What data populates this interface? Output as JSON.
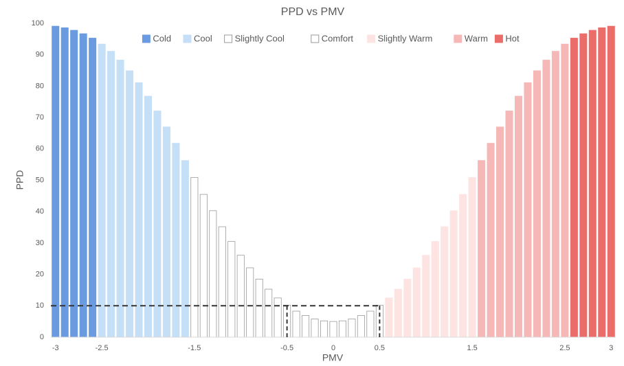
{
  "chart_data": {
    "type": "bar",
    "title": "PPD vs PMV",
    "xlabel": "PMV",
    "ylabel": "PPD",
    "categories": [
      "-3",
      null,
      null,
      null,
      null,
      "-2.5",
      null,
      null,
      null,
      null,
      null,
      null,
      null,
      null,
      null,
      "-1.5",
      null,
      null,
      null,
      null,
      null,
      null,
      null,
      null,
      null,
      "-0.5",
      null,
      null,
      null,
      null,
      "0",
      null,
      null,
      null,
      null,
      "0.5",
      null,
      null,
      null,
      null,
      null,
      null,
      null,
      null,
      null,
      "1.5",
      null,
      null,
      null,
      null,
      null,
      null,
      null,
      null,
      null,
      "2.5",
      null,
      null,
      null,
      null,
      "3"
    ],
    "series": [
      {
        "name": "Cold",
        "color": "#6a9be0",
        "values": [
          99.1,
          98.6,
          97.8,
          96.7,
          95.3,
          null,
          null,
          null,
          null,
          null,
          null,
          null,
          null,
          null,
          null,
          null,
          null,
          null,
          null,
          null,
          null,
          null,
          null,
          null,
          null,
          null,
          null,
          null,
          null,
          null,
          null,
          null,
          null,
          null,
          null,
          null,
          null,
          null,
          null,
          null,
          null,
          null,
          null,
          null,
          null,
          null,
          null,
          null,
          null,
          null,
          null,
          null,
          null,
          null,
          null,
          null,
          null,
          null,
          null,
          null,
          null
        ]
      },
      {
        "name": "Cool",
        "color": "#c5dff7",
        "values": [
          null,
          null,
          null,
          null,
          null,
          93.4,
          91.1,
          88.3,
          84.9,
          81.1,
          76.8,
          72.1,
          67.0,
          61.8,
          56.3,
          null,
          null,
          null,
          null,
          null,
          null,
          null,
          null,
          null,
          null,
          null,
          null,
          null,
          null,
          null,
          null,
          null,
          null,
          null,
          null,
          null,
          null,
          null,
          null,
          null,
          null,
          null,
          null,
          null,
          null,
          null,
          null,
          null,
          null,
          null,
          null,
          null,
          null,
          null,
          null,
          null,
          null,
          null,
          null,
          null,
          null
        ]
      },
      {
        "name": "Slightly Cool",
        "color": "#ffffff",
        "values": [
          null,
          null,
          null,
          null,
          null,
          null,
          null,
          null,
          null,
          null,
          null,
          null,
          null,
          null,
          null,
          50.9,
          45.5,
          40.3,
          35.2,
          30.5,
          26.1,
          22.1,
          18.5,
          15.3,
          12.5,
          null,
          null,
          null,
          null,
          null,
          null,
          null,
          null,
          null,
          null,
          null,
          null,
          null,
          null,
          null,
          null,
          null,
          null,
          null,
          null,
          null,
          null,
          null,
          null,
          null,
          null,
          null,
          null,
          null,
          null,
          null,
          null,
          null,
          null,
          null,
          null
        ]
      },
      {
        "name": "Comfort",
        "color": "#ffffff",
        "values": [
          null,
          null,
          null,
          null,
          null,
          null,
          null,
          null,
          null,
          null,
          null,
          null,
          null,
          null,
          null,
          null,
          null,
          null,
          null,
          null,
          null,
          null,
          null,
          null,
          null,
          10.2,
          8.3,
          6.9,
          5.8,
          5.2,
          5.0,
          5.2,
          5.8,
          6.9,
          8.3,
          10.2,
          null,
          null,
          null,
          null,
          null,
          null,
          null,
          null,
          null,
          null,
          null,
          null,
          null,
          null,
          null,
          null,
          null,
          null,
          null,
          null,
          null,
          null,
          null,
          null,
          null
        ]
      },
      {
        "name": "Slightly Warm",
        "color": "#fde3e2",
        "values": [
          null,
          null,
          null,
          null,
          null,
          null,
          null,
          null,
          null,
          null,
          null,
          null,
          null,
          null,
          null,
          null,
          null,
          null,
          null,
          null,
          null,
          null,
          null,
          null,
          null,
          null,
          null,
          null,
          null,
          null,
          null,
          null,
          null,
          null,
          null,
          null,
          12.5,
          15.3,
          18.5,
          22.1,
          26.1,
          30.5,
          35.2,
          40.3,
          45.5,
          50.9,
          null,
          null,
          null,
          null,
          null,
          null,
          null,
          null,
          null,
          null,
          null,
          null,
          null,
          null,
          null
        ]
      },
      {
        "name": "Warm",
        "color": "#f5b8b6",
        "values": [
          null,
          null,
          null,
          null,
          null,
          null,
          null,
          null,
          null,
          null,
          null,
          null,
          null,
          null,
          null,
          null,
          null,
          null,
          null,
          null,
          null,
          null,
          null,
          null,
          null,
          null,
          null,
          null,
          null,
          null,
          null,
          null,
          null,
          null,
          null,
          null,
          null,
          null,
          null,
          null,
          null,
          null,
          null,
          null,
          null,
          null,
          56.3,
          61.8,
          67.0,
          72.1,
          76.8,
          81.1,
          84.9,
          88.3,
          91.1,
          93.4,
          null,
          null,
          null,
          null,
          null
        ]
      },
      {
        "name": "Hot",
        "color": "#eb6d6a",
        "values": [
          null,
          null,
          null,
          null,
          null,
          null,
          null,
          null,
          null,
          null,
          null,
          null,
          null,
          null,
          null,
          null,
          null,
          null,
          null,
          null,
          null,
          null,
          null,
          null,
          null,
          null,
          null,
          null,
          null,
          null,
          null,
          null,
          null,
          null,
          null,
          null,
          null,
          null,
          null,
          null,
          null,
          null,
          null,
          null,
          null,
          null,
          null,
          null,
          null,
          null,
          null,
          null,
          null,
          null,
          null,
          null,
          95.3,
          96.7,
          97.8,
          98.6,
          99.1
        ]
      }
    ],
    "threshold": 10,
    "comfort_bounds": [
      -0.5,
      0.5
    ],
    "ylim": [
      0,
      100
    ],
    "yticks": [
      0,
      10,
      20,
      30,
      40,
      50,
      60,
      70,
      80,
      90,
      100
    ],
    "grid": false,
    "legend": "top"
  }
}
